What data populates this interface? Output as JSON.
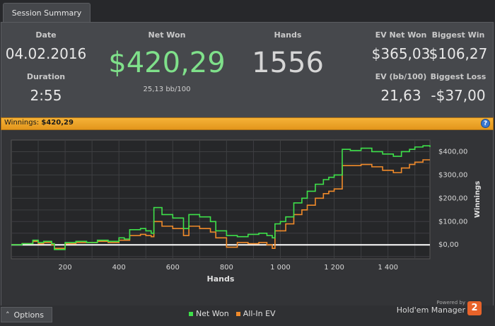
{
  "tab": {
    "label": "Session Summary"
  },
  "summary": {
    "date_label": "Date",
    "date_value": "04.02.2016",
    "duration_label": "Duration",
    "duration_value": "2:55",
    "netwon_label": "Net Won",
    "netwon_value": "$420,29",
    "bb_value": "25,13 bb/100",
    "hands_label": "Hands",
    "hands_value": "1556",
    "ev_netwon_label": "EV Net Won",
    "ev_netwon_value": "$365,03",
    "biggest_win_label": "Biggest Win",
    "biggest_win_value": "$106,27",
    "ev_bb_label": "EV (bb/100)",
    "ev_bb_value": "21,63",
    "biggest_loss_label": "Biggest Loss",
    "biggest_loss_value": "-$37,00"
  },
  "winbar": {
    "label": "Winnings:",
    "value": "$420,29",
    "help": "?"
  },
  "colors": {
    "net_won": "#3ee04a",
    "all_in_ev": "#f08a2a",
    "accent": "#f0a830",
    "netwon_text": "#7fe08a",
    "zero_line": "#ffffff"
  },
  "footer": {
    "options_label": "Options",
    "options_icon": "chevron-up-icon",
    "powered_by": "Powered by",
    "product": "Hold'em Manager",
    "logo_text": "2"
  },
  "chart_data": {
    "type": "line",
    "xlabel": "Hands",
    "ylabel": "Winnings",
    "xlim": [
      0,
      1556
    ],
    "ylim": [
      -60,
      450
    ],
    "x_ticks": [
      200,
      400,
      600,
      800,
      1000,
      1200,
      1400
    ],
    "x_tick_labels": [
      "200",
      "400",
      "600",
      "800",
      "1 000",
      "1 200",
      "1 400"
    ],
    "y_ticks": [
      0,
      100,
      200,
      300,
      400
    ],
    "y_tick_labels": [
      "$0,00",
      "$100,00",
      "$200,00",
      "$300,00",
      "$400,00"
    ],
    "grid": true,
    "legend_position": "bottom",
    "series": [
      {
        "name": "Net Won",
        "x": [
          0,
          40,
          80,
          100,
          120,
          150,
          160,
          200,
          240,
          280,
          320,
          360,
          400,
          420,
          440,
          480,
          500,
          520,
          530,
          560,
          600,
          640,
          660,
          700,
          740,
          760,
          800,
          840,
          880,
          920,
          950,
          970,
          980,
          1000,
          1020,
          1050,
          1080,
          1100,
          1130,
          1160,
          1180,
          1200,
          1230,
          1260,
          1300,
          1340,
          1380,
          1420,
          1450,
          1480,
          1500,
          1530,
          1556
        ],
        "y": [
          0,
          5,
          20,
          10,
          15,
          5,
          -20,
          10,
          15,
          10,
          20,
          15,
          30,
          25,
          65,
          70,
          60,
          50,
          160,
          130,
          115,
          70,
          130,
          120,
          100,
          60,
          40,
          35,
          45,
          50,
          40,
          30,
          90,
          100,
          120,
          180,
          200,
          230,
          260,
          280,
          290,
          300,
          410,
          405,
          415,
          400,
          390,
          380,
          400,
          410,
          420,
          425,
          420
        ]
      },
      {
        "name": "All-In EV",
        "x": [
          0,
          40,
          80,
          100,
          120,
          150,
          160,
          200,
          240,
          280,
          320,
          360,
          400,
          420,
          440,
          480,
          500,
          520,
          530,
          560,
          600,
          640,
          660,
          700,
          740,
          760,
          800,
          840,
          880,
          920,
          950,
          970,
          980,
          1000,
          1020,
          1050,
          1080,
          1100,
          1130,
          1160,
          1180,
          1200,
          1230,
          1260,
          1300,
          1340,
          1380,
          1420,
          1450,
          1480,
          1500,
          1530,
          1556
        ],
        "y": [
          0,
          5,
          15,
          5,
          10,
          0,
          -15,
          5,
          10,
          10,
          15,
          10,
          20,
          20,
          40,
          45,
          40,
          35,
          100,
          80,
          70,
          40,
          80,
          70,
          55,
          30,
          -10,
          10,
          5,
          10,
          0,
          -15,
          60,
          60,
          90,
          130,
          150,
          170,
          200,
          220,
          230,
          240,
          340,
          340,
          345,
          335,
          320,
          310,
          330,
          345,
          355,
          365,
          365
        ]
      }
    ]
  }
}
